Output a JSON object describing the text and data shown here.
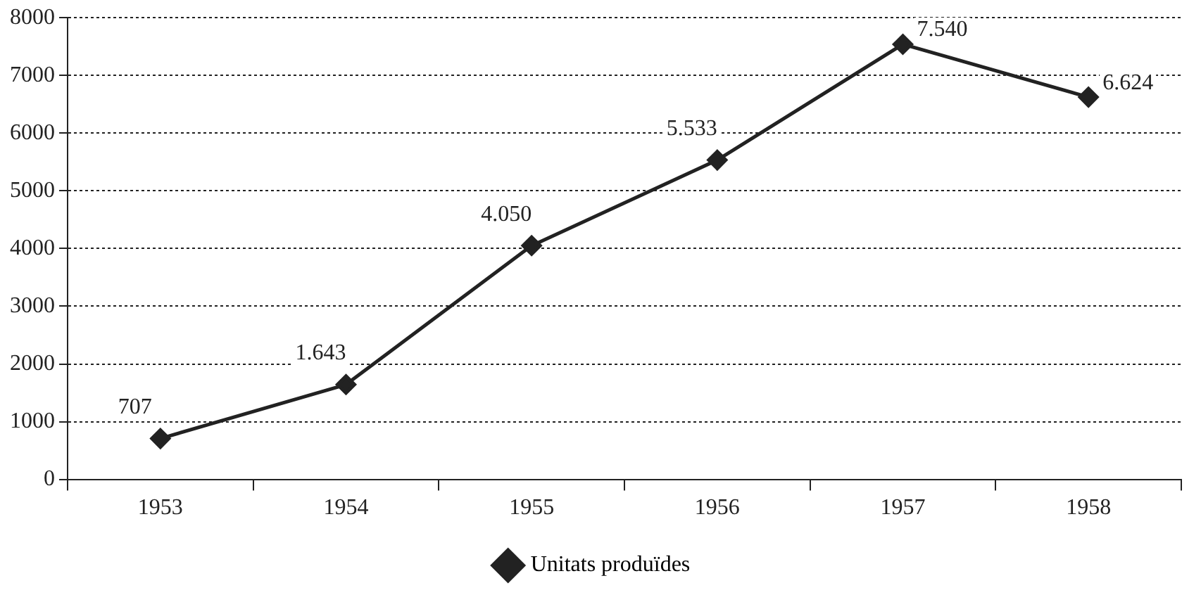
{
  "chart_data": {
    "type": "line",
    "categories": [
      "1953",
      "1954",
      "1955",
      "1956",
      "1957",
      "1958"
    ],
    "series": [
      {
        "name": "Unitats produïdes",
        "color": "#222222",
        "values": [
          707,
          1643,
          4050,
          5533,
          7540,
          6624
        ],
        "value_labels": [
          "707",
          "1.643",
          "4.050",
          "5.533",
          "7.540",
          "6.624"
        ]
      }
    ],
    "ylim": [
      0,
      8000
    ],
    "yticks": [
      0,
      1000,
      2000,
      3000,
      4000,
      5000,
      6000,
      7000,
      8000
    ],
    "grid": "y",
    "legend": "bottom",
    "marker": "diamond",
    "line_style": "solid"
  }
}
